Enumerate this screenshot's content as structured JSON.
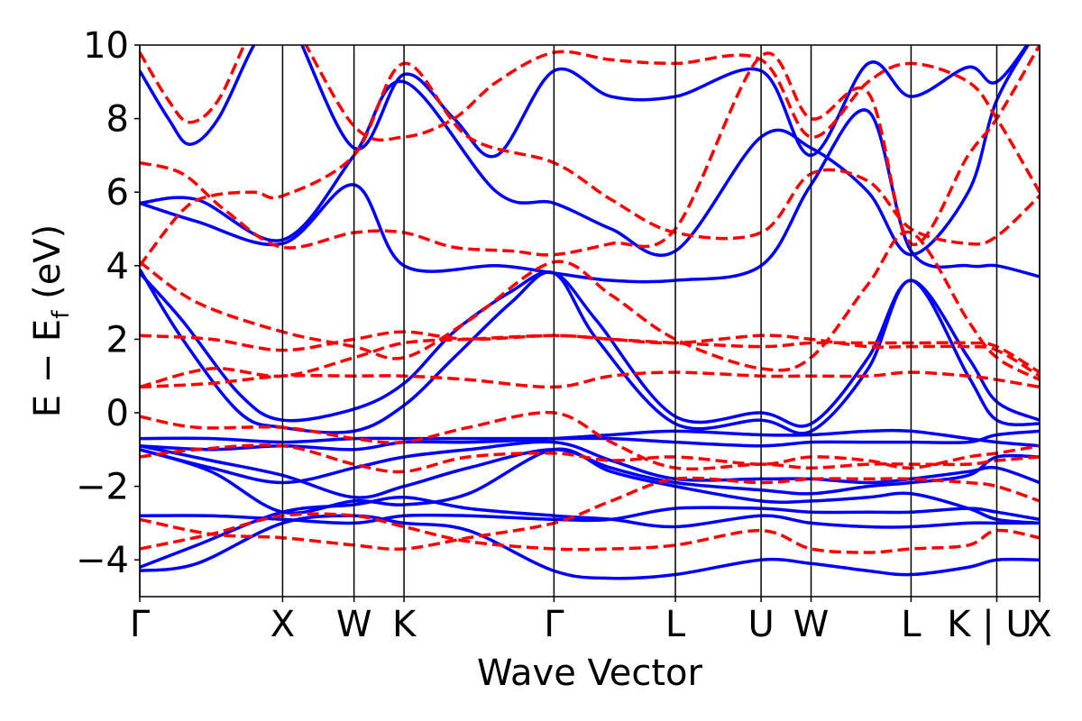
{
  "chart_data": {
    "type": "line",
    "title": "",
    "xlabel": "Wave Vector",
    "ylabel": "E − E",
    "ylabel_sub": "f",
    "ylabel_unit": " (eV)",
    "ylim": [
      -5,
      10
    ],
    "yticks": [
      -4,
      -2,
      0,
      2,
      4,
      6,
      8,
      10
    ],
    "ytick_labels": [
      "−4",
      "−2",
      "0",
      "2",
      "4",
      "6",
      "8",
      "10"
    ],
    "xlim": [
      0,
      6.3
    ],
    "high_symmetry_points": [
      {
        "label": "Γ",
        "x": 0.0
      },
      {
        "label": "X",
        "x": 1.0
      },
      {
        "label": "W",
        "x": 1.5
      },
      {
        "label": "K",
        "x": 1.85
      },
      {
        "label": "Γ",
        "x": 2.9
      },
      {
        "label": "L",
        "x": 3.75
      },
      {
        "label": "U",
        "x": 4.35
      },
      {
        "label": "W",
        "x": 4.7
      },
      {
        "label": "L",
        "x": 5.4
      },
      {
        "label": "K | U",
        "x": 6.0
      },
      {
        "label": "X",
        "x": 6.3
      }
    ],
    "grid": false,
    "colors": {
      "solid": "#0000ff",
      "dashed": "#ff0000",
      "vlines": "#000000"
    },
    "series": [
      {
        "style": "solid",
        "x": [
          0,
          0.4,
          1.0,
          1.5,
          1.85,
          2.3,
          2.9,
          3.3,
          3.75,
          4.35,
          4.7,
          5.1,
          5.4,
          5.8,
          6.0,
          6.3
        ],
        "y": [
          -4.3,
          -4.1,
          -3.0,
          -2.8,
          -3.0,
          -3.2,
          -4.3,
          -4.5,
          -4.4,
          -4.0,
          -4.1,
          -4.3,
          -4.4,
          -4.2,
          -4.0,
          -4.0
        ]
      },
      {
        "style": "solid",
        "x": [
          0,
          0.4,
          1.0,
          1.5,
          1.85,
          2.3,
          2.9,
          3.3,
          3.75,
          4.35,
          4.7,
          5.1,
          5.4,
          5.8,
          6.0,
          6.3
        ],
        "y": [
          -4.2,
          -3.6,
          -2.7,
          -2.5,
          -2.3,
          -2.6,
          -2.8,
          -2.9,
          -3.1,
          -2.8,
          -3.0,
          -3.1,
          -3.1,
          -3.0,
          -3.0,
          -3.0
        ]
      },
      {
        "style": "solid",
        "x": [
          0,
          0.5,
          1.0,
          1.5,
          1.85,
          2.3,
          2.9,
          3.3,
          3.75,
          4.35,
          4.7,
          5.1,
          5.4,
          5.8,
          6.0,
          6.3
        ],
        "y": [
          -2.8,
          -2.8,
          -2.9,
          -3.0,
          -2.8,
          -2.8,
          -2.9,
          -2.9,
          -2.6,
          -2.6,
          -2.7,
          -2.7,
          -2.7,
          -2.6,
          -2.7,
          -2.9
        ]
      },
      {
        "style": "solid",
        "x": [
          0,
          0.5,
          1.0,
          1.5,
          1.85,
          2.3,
          2.9,
          3.3,
          3.75,
          4.35,
          4.7,
          5.1,
          5.4,
          5.8,
          6.0,
          6.3
        ],
        "y": [
          -1.0,
          -1.5,
          -1.9,
          -1.5,
          -1.2,
          -1.0,
          -0.8,
          -1.3,
          -1.8,
          -1.8,
          -1.8,
          -1.9,
          -1.8,
          -1.6,
          -1.5,
          -1.9
        ]
      },
      {
        "style": "solid",
        "x": [
          0,
          0.5,
          1.0,
          1.5,
          1.85,
          2.3,
          2.9,
          3.3,
          3.75,
          4.35,
          4.7,
          5.1,
          5.4,
          5.8,
          6.0,
          6.3
        ],
        "y": [
          -0.9,
          -1.0,
          -0.9,
          -1.0,
          -0.8,
          -0.8,
          -0.7,
          -0.6,
          -0.5,
          -0.6,
          -0.6,
          -0.5,
          -0.5,
          -0.7,
          -0.8,
          -0.9
        ]
      },
      {
        "style": "solid",
        "x": [
          0,
          0.5,
          1.0,
          1.5,
          1.85,
          2.3,
          2.9,
          3.3,
          3.75,
          4.35,
          4.7,
          5.1,
          5.4,
          5.8,
          6.0,
          6.3
        ],
        "y": [
          -0.7,
          -0.7,
          -0.8,
          -0.7,
          -0.7,
          -0.7,
          -0.7,
          -0.7,
          -0.8,
          -0.9,
          -0.8,
          -0.8,
          -0.8,
          -0.8,
          -0.6,
          -0.5
        ]
      },
      {
        "style": "solid",
        "x": [
          0,
          0.3,
          0.7,
          1.0,
          1.5,
          1.85,
          2.2,
          2.6,
          2.9,
          3.2,
          3.75,
          4.35,
          4.7,
          5.1,
          5.4,
          5.8,
          6.0,
          6.3
        ],
        "y": [
          3.8,
          2.5,
          0.5,
          -0.2,
          0.1,
          0.8,
          2.2,
          3.3,
          3.8,
          2.5,
          -0.1,
          0.0,
          -0.3,
          1.5,
          3.6,
          1.5,
          0.3,
          -0.2
        ]
      },
      {
        "style": "solid",
        "x": [
          0,
          0.3,
          0.7,
          1.0,
          1.5,
          1.85,
          2.2,
          2.6,
          2.9,
          3.2,
          3.75,
          4.35,
          4.7,
          5.1,
          5.4,
          5.8,
          6.0,
          6.3
        ],
        "y": [
          3.9,
          2.0,
          0.0,
          -0.4,
          -0.5,
          0.2,
          1.5,
          3.0,
          3.8,
          2.0,
          -0.3,
          -0.2,
          -0.5,
          1.2,
          3.6,
          1.0,
          -0.2,
          -0.3
        ]
      },
      {
        "style": "solid",
        "x": [
          0,
          0.4,
          1.0,
          1.5,
          1.85,
          2.5,
          2.9,
          3.3,
          3.75,
          4.35,
          4.7,
          5.1,
          5.4,
          5.8,
          6.0,
          6.3
        ],
        "y": [
          5.7,
          5.2,
          4.6,
          6.2,
          4.0,
          4.0,
          3.8,
          3.6,
          3.6,
          4.0,
          6.2,
          8.2,
          4.4,
          4.0,
          4.0,
          3.7
        ]
      },
      {
        "style": "solid",
        "x": [
          0,
          0.4,
          1.0,
          1.5,
          1.85,
          2.5,
          2.9,
          3.3,
          3.75,
          4.35,
          4.7,
          5.1,
          5.4,
          5.8,
          6.0,
          6.3
        ],
        "y": [
          5.7,
          5.8,
          4.7,
          7.0,
          9.0,
          6.0,
          5.7,
          5.0,
          4.4,
          7.5,
          7.2,
          6.0,
          4.3,
          6.0,
          8.5,
          10.5
        ]
      },
      {
        "style": "solid",
        "x": [
          0,
          0.2,
          0.35,
          0.55,
          0.8,
          1.0,
          1.5,
          1.85,
          2.2,
          2.5,
          2.9,
          3.3,
          3.75,
          4.35,
          4.7,
          5.1,
          5.4,
          5.8,
          6.0,
          6.3
        ],
        "y": [
          9.3,
          8.0,
          7.3,
          8.0,
          10.0,
          11.0,
          7.2,
          9.2,
          8.0,
          7.0,
          9.3,
          8.6,
          8.6,
          9.3,
          7.0,
          9.5,
          8.6,
          9.4,
          9.0,
          10.5
        ]
      },
      {
        "style": "solid",
        "x": [
          0,
          0.5,
          1.0,
          1.5,
          1.85,
          2.3,
          2.9,
          3.3,
          3.75,
          4.35,
          4.7,
          5.1,
          5.4,
          5.8,
          6.0,
          6.3
        ],
        "y": [
          -0.9,
          -1.3,
          -1.7,
          -2.3,
          -2.0,
          -1.5,
          -1.0,
          -1.5,
          -1.9,
          -2.1,
          -2.2,
          -2.0,
          -1.9,
          -1.7,
          -1.2,
          -1.2
        ]
      },
      {
        "style": "solid",
        "x": [
          0,
          0.5,
          1.0,
          1.5,
          1.85,
          2.3,
          2.9,
          3.3,
          3.75,
          4.35,
          4.7,
          5.1,
          5.4,
          5.8,
          6.0,
          6.3
        ],
        "y": [
          -1.0,
          -1.6,
          -2.7,
          -2.4,
          -2.5,
          -2.2,
          -1.0,
          -1.6,
          -2.0,
          -2.4,
          -2.4,
          -2.3,
          -2.2,
          -2.6,
          -2.9,
          -3.0
        ]
      },
      {
        "style": "dashed",
        "x": [
          0,
          0.5,
          1.0,
          1.5,
          1.85,
          2.3,
          2.9,
          3.3,
          3.75,
          4.35,
          4.7,
          5.1,
          5.4,
          5.8,
          6.0,
          6.3
        ],
        "y": [
          0.7,
          0.8,
          1.0,
          1.0,
          1.0,
          0.9,
          0.7,
          1.0,
          1.1,
          1.0,
          1.0,
          1.0,
          1.1,
          1.0,
          0.9,
          0.7
        ]
      },
      {
        "style": "dashed",
        "x": [
          0,
          0.5,
          1.0,
          1.5,
          1.85,
          2.3,
          2.9,
          3.3,
          3.75,
          4.35,
          4.7,
          5.1,
          5.4,
          5.8,
          6.0,
          6.3
        ],
        "y": [
          0.7,
          1.2,
          1.0,
          1.5,
          1.9,
          2.0,
          2.1,
          2.0,
          1.9,
          1.8,
          1.9,
          1.9,
          1.9,
          1.9,
          1.8,
          1.1
        ]
      },
      {
        "style": "dashed",
        "x": [
          0,
          0.5,
          1.0,
          1.5,
          1.85,
          2.3,
          2.9,
          3.3,
          3.75,
          4.35,
          4.7,
          5.1,
          5.4,
          5.8,
          6.0,
          6.3
        ],
        "y": [
          2.1,
          2.0,
          1.7,
          2.0,
          2.2,
          2.0,
          2.1,
          2.0,
          1.9,
          2.1,
          2.0,
          1.8,
          1.8,
          1.8,
          1.7,
          1.0
        ]
      },
      {
        "style": "dashed",
        "x": [
          0,
          0.4,
          1.0,
          1.5,
          1.85,
          2.3,
          2.9,
          3.3,
          3.75,
          4.35,
          4.7,
          5.1,
          5.4,
          5.8,
          6.0,
          6.3
        ],
        "y": [
          4.1,
          3.0,
          2.2,
          1.8,
          1.5,
          2.5,
          4.1,
          3.2,
          2.0,
          1.2,
          1.5,
          3.5,
          4.9,
          2.5,
          1.5,
          0.9
        ]
      },
      {
        "style": "dashed",
        "x": [
          0,
          0.4,
          1.0,
          1.5,
          1.85,
          2.3,
          2.9,
          3.3,
          3.75,
          4.35,
          4.7,
          5.1,
          5.4,
          5.8,
          6.0,
          6.3
        ],
        "y": [
          -0.1,
          -0.4,
          -0.4,
          -0.7,
          -0.8,
          -0.4,
          0.0,
          -0.8,
          -1.5,
          -1.4,
          -1.5,
          -1.4,
          -1.4,
          -1.4,
          -1.3,
          -1.2
        ]
      },
      {
        "style": "dashed",
        "x": [
          0,
          0.4,
          1.0,
          1.5,
          1.85,
          2.3,
          2.9,
          3.3,
          3.75,
          4.35,
          4.7,
          5.1,
          5.4,
          5.8,
          6.0,
          6.3
        ],
        "y": [
          -1.2,
          -1.0,
          -0.9,
          -1.4,
          -1.6,
          -1.2,
          -1.1,
          -1.3,
          -1.2,
          -1.4,
          -1.2,
          -1.3,
          -1.5,
          -1.2,
          -1.1,
          -0.9
        ]
      },
      {
        "style": "dashed",
        "x": [
          0,
          0.5,
          1.0,
          1.5,
          1.85,
          2.3,
          2.9,
          3.3,
          3.75,
          4.35,
          4.7,
          5.1,
          5.4,
          5.8,
          6.0,
          6.3
        ],
        "y": [
          -2.9,
          -3.3,
          -3.4,
          -3.6,
          -3.7,
          -3.4,
          -3.0,
          -2.4,
          -1.8,
          -1.9,
          -1.8,
          -1.8,
          -1.8,
          -1.9,
          -2.0,
          -2.4
        ]
      },
      {
        "style": "dashed",
        "x": [
          0,
          0.5,
          1.0,
          1.5,
          1.85,
          2.3,
          2.9,
          3.3,
          3.75,
          4.35,
          4.7,
          5.1,
          5.4,
          5.8,
          6.0,
          6.3
        ],
        "y": [
          -3.7,
          -3.3,
          -2.8,
          -2.8,
          -3.1,
          -3.5,
          -3.7,
          -3.7,
          -3.6,
          -3.2,
          -3.7,
          -3.8,
          -3.7,
          -3.6,
          -3.2,
          -3.4
        ]
      },
      {
        "style": "dashed",
        "x": [
          0,
          0.3,
          0.5,
          0.8,
          1.0,
          1.5,
          1.85,
          2.3,
          2.9,
          3.3,
          3.75,
          4.35,
          4.7,
          5.1,
          5.4,
          5.8,
          6.0,
          6.3
        ],
        "y": [
          4.0,
          5.5,
          5.9,
          6.0,
          5.9,
          7.0,
          9.5,
          7.5,
          6.8,
          5.8,
          4.9,
          4.9,
          6.5,
          6.3,
          5.0,
          4.6,
          4.8,
          5.9
        ]
      },
      {
        "style": "dashed",
        "x": [
          0,
          0.3,
          0.6,
          1.0,
          1.5,
          1.85,
          2.2,
          2.6,
          2.9,
          3.3,
          3.75,
          4.35,
          4.7,
          5.1,
          5.4,
          5.8,
          6.0,
          6.3
        ],
        "y": [
          6.8,
          6.5,
          5.5,
          4.5,
          4.9,
          4.9,
          4.5,
          4.4,
          4.3,
          4.6,
          5.0,
          9.7,
          8.0,
          8.7,
          4.6,
          7.0,
          8.0,
          10.0
        ]
      },
      {
        "style": "dashed",
        "x": [
          0,
          0.2,
          0.35,
          0.55,
          0.8,
          1.0,
          1.5,
          1.85,
          2.2,
          2.5,
          2.9,
          3.3,
          3.75,
          4.35,
          4.7,
          5.1,
          5.4,
          5.8,
          6.0,
          6.3
        ],
        "y": [
          9.8,
          8.5,
          7.9,
          8.5,
          10.5,
          11.0,
          7.8,
          7.5,
          8.0,
          9.0,
          9.8,
          9.6,
          9.5,
          9.6,
          7.5,
          9.0,
          9.5,
          9.0,
          8.0,
          6.0
        ]
      }
    ]
  }
}
